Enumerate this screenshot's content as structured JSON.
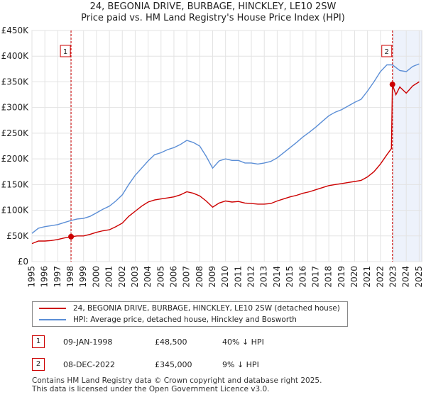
{
  "colors": {
    "price_line": "#cc0000",
    "hpi_line": "#5b8ed6",
    "grid": "#e3e3e3",
    "plot_bg": "#ffffff",
    "marker_line": "#cc0000",
    "shade": "#dfe8f7"
  },
  "title_line1": "24, BEGONIA DRIVE, BURBAGE, HINCKLEY, LE10 2SW",
  "title_line2": "Price paid vs. HM Land Registry's House Price Index (HPI)",
  "legend": {
    "price_label": "24, BEGONIA DRIVE, BURBAGE, HINCKLEY, LE10 2SW (detached house)",
    "hpi_label": "HPI: Average price, detached house, Hinckley and Bosworth"
  },
  "transactions": [
    {
      "id": "1",
      "date": "09-JAN-1998",
      "price": "£48,500",
      "hpi": "40% ↓ HPI"
    },
    {
      "id": "2",
      "date": "08-DEC-2022",
      "price": "£345,000",
      "hpi": "9% ↓ HPI"
    }
  ],
  "footer_line1": "Contains HM Land Registry data © Crown copyright and database right 2025.",
  "footer_line2": "This data is licensed under the Open Government Licence v3.0.",
  "chart_data": {
    "type": "line",
    "title": "24, BEGONIA DRIVE, BURBAGE, HINCKLEY, LE10 2SW — Price paid vs. HM Land Registry's House Price Index (HPI)",
    "xlabel": "",
    "ylabel": "",
    "xlim": [
      1995,
      2025.2
    ],
    "ylim": [
      0,
      450000
    ],
    "grid": true,
    "legend_position": "below",
    "x_ticks": [
      "1995",
      "1996",
      "1997",
      "1998",
      "1999",
      "2000",
      "2001",
      "2002",
      "2003",
      "2004",
      "2005",
      "2006",
      "2007",
      "2008",
      "2009",
      "2010",
      "2011",
      "2012",
      "2013",
      "2014",
      "2015",
      "2016",
      "2017",
      "2018",
      "2019",
      "2020",
      "2021",
      "2022",
      "2023",
      "2024",
      "2025"
    ],
    "y_ticks": [
      {
        "value": 0,
        "label": "£0"
      },
      {
        "value": 50000,
        "label": "£50K"
      },
      {
        "value": 100000,
        "label": "£100K"
      },
      {
        "value": 150000,
        "label": "£150K"
      },
      {
        "value": 200000,
        "label": "£200K"
      },
      {
        "value": 250000,
        "label": "£250K"
      },
      {
        "value": 300000,
        "label": "£300K"
      },
      {
        "value": 350000,
        "label": "£350K"
      },
      {
        "value": 400000,
        "label": "£400K"
      },
      {
        "value": 450000,
        "label": "£450K"
      }
    ],
    "sale_markers": [
      {
        "label": "1",
        "x": 1998.03,
        "y": 48500
      },
      {
        "label": "2",
        "x": 2022.93,
        "y": 345000
      }
    ],
    "series": [
      {
        "name": "24, BEGONIA DRIVE, BURBAGE, HINCKLEY, LE10 2SW (detached house)",
        "color": "#cc0000",
        "x": [
          1995,
          1995.5,
          1996,
          1996.5,
          1997,
          1997.5,
          1998.03,
          1998.5,
          1999,
          1999.5,
          2000,
          2000.5,
          2001,
          2001.5,
          2002,
          2002.5,
          2003,
          2003.5,
          2004,
          2004.5,
          2005,
          2005.5,
          2006,
          2006.5,
          2007,
          2007.5,
          2008,
          2008.5,
          2009,
          2009.5,
          2010,
          2010.5,
          2011,
          2011.5,
          2012,
          2012.5,
          2013,
          2013.5,
          2014,
          2014.5,
          2015,
          2015.5,
          2016,
          2016.5,
          2017,
          2017.5,
          2018,
          2018.5,
          2019,
          2019.5,
          2020,
          2020.5,
          2021,
          2021.5,
          2022,
          2022.5,
          2022.85,
          2022.93,
          2023.2,
          2023.5,
          2024,
          2024.5,
          2025
        ],
        "y": [
          35000,
          40000,
          40000,
          41000,
          43000,
          46000,
          48500,
          50000,
          50000,
          53000,
          57000,
          60000,
          62000,
          68000,
          75000,
          88000,
          98000,
          108000,
          116000,
          120000,
          122000,
          124000,
          126000,
          130000,
          136000,
          133000,
          128000,
          118000,
          106000,
          114000,
          118000,
          116000,
          117000,
          114000,
          113000,
          112000,
          112000,
          113000,
          118000,
          122000,
          126000,
          129000,
          133000,
          136000,
          140000,
          144000,
          148000,
          150000,
          152000,
          154000,
          156000,
          158000,
          165000,
          175000,
          190000,
          208000,
          220000,
          345000,
          325000,
          340000,
          328000,
          342000,
          350000
        ]
      },
      {
        "name": "HPI: Average price, detached house, Hinckley and Bosworth",
        "color": "#5b8ed6",
        "x": [
          1995,
          1995.5,
          1996,
          1996.5,
          1997,
          1997.5,
          1998.03,
          1998.5,
          1999,
          1999.5,
          2000,
          2000.5,
          2001,
          2001.5,
          2002,
          2002.5,
          2003,
          2003.5,
          2004,
          2004.5,
          2005,
          2005.5,
          2006,
          2006.5,
          2007,
          2007.5,
          2008,
          2008.5,
          2009,
          2009.5,
          2010,
          2010.5,
          2011,
          2011.5,
          2012,
          2012.5,
          2013,
          2013.5,
          2014,
          2014.5,
          2015,
          2015.5,
          2016,
          2016.5,
          2017,
          2017.5,
          2018,
          2018.5,
          2019,
          2019.5,
          2020,
          2020.5,
          2021,
          2021.5,
          2022,
          2022.5,
          2022.93,
          2023.2,
          2023.5,
          2024,
          2024.5,
          2025
        ],
        "y": [
          55000,
          65000,
          68000,
          70000,
          72000,
          76000,
          80000,
          83000,
          84000,
          88000,
          95000,
          102000,
          108000,
          118000,
          130000,
          150000,
          168000,
          182000,
          196000,
          208000,
          212000,
          218000,
          222000,
          228000,
          236000,
          232000,
          225000,
          205000,
          182000,
          196000,
          200000,
          197000,
          197000,
          192000,
          192000,
          190000,
          192000,
          195000,
          202000,
          212000,
          222000,
          232000,
          243000,
          252000,
          262000,
          273000,
          284000,
          291000,
          296000,
          303000,
          310000,
          316000,
          332000,
          350000,
          370000,
          383000,
          383000,
          378000,
          372000,
          370000,
          380000,
          385000
        ]
      }
    ]
  }
}
